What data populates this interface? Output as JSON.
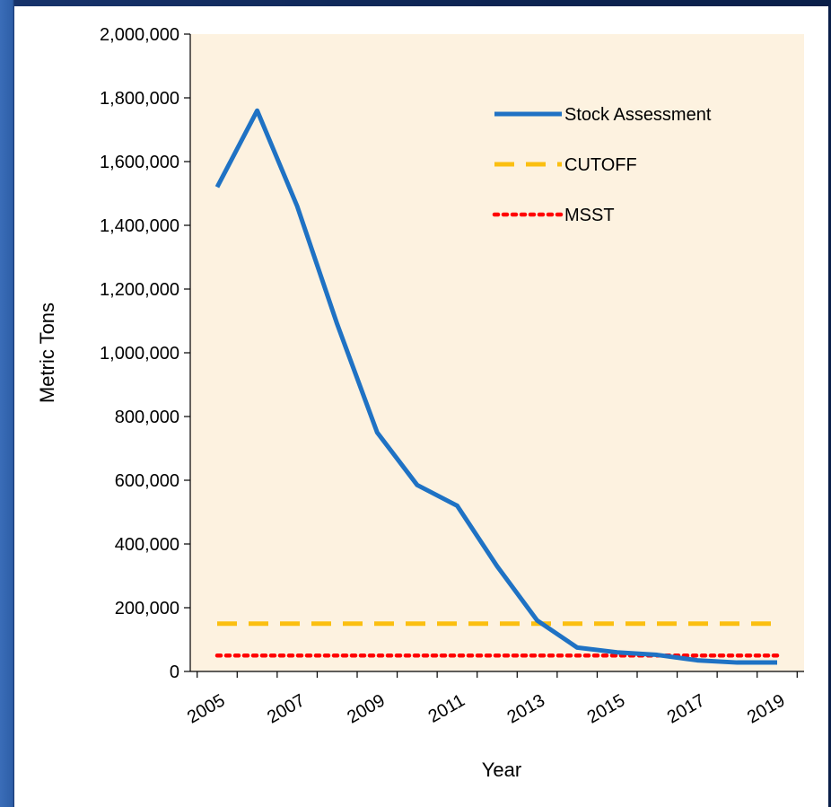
{
  "chart_data": {
    "type": "line",
    "xlabel": "Year",
    "ylabel": "Metric Tons",
    "xlim": [
      2005,
      2019
    ],
    "ylim": [
      0,
      2000000
    ],
    "x_ticks": [
      2005,
      2007,
      2009,
      2011,
      2013,
      2015,
      2017,
      2019
    ],
    "x_tick_labels": [
      "2005",
      "2007",
      "2009",
      "2011",
      "2013",
      "2015",
      "2017",
      "2019"
    ],
    "y_ticks": [
      0,
      200000,
      400000,
      600000,
      800000,
      1000000,
      1200000,
      1400000,
      1600000,
      1800000,
      2000000
    ],
    "y_tick_labels": [
      "0",
      "200,000",
      "400,000",
      "600,000",
      "800,000",
      "1,000,000",
      "1,200,000",
      "1,400,000",
      "1,600,000",
      "1,800,000",
      "2,000,000"
    ],
    "grid": false,
    "legend_position": "top-right",
    "plot_background": "#fdf2e0",
    "series": [
      {
        "name": "Stock Assessment",
        "style": "solid",
        "color": "#1f72c4",
        "x": [
          2005,
          2006,
          2007,
          2008,
          2009,
          2010,
          2011,
          2012,
          2013,
          2014,
          2015,
          2016,
          2017,
          2018,
          2019
        ],
        "values": [
          1520000,
          1760000,
          1460000,
          1090000,
          750000,
          585000,
          520000,
          330000,
          160000,
          75000,
          60000,
          52000,
          35000,
          28000,
          28000
        ]
      },
      {
        "name": "CUTOFF",
        "style": "dashed",
        "color": "#fbbf10",
        "x": [
          2005,
          2019
        ],
        "values": [
          150000,
          150000
        ]
      },
      {
        "name": "MSST",
        "style": "dotted",
        "color": "#ff0000",
        "x": [
          2005,
          2019
        ],
        "values": [
          50000,
          50000
        ]
      }
    ]
  }
}
